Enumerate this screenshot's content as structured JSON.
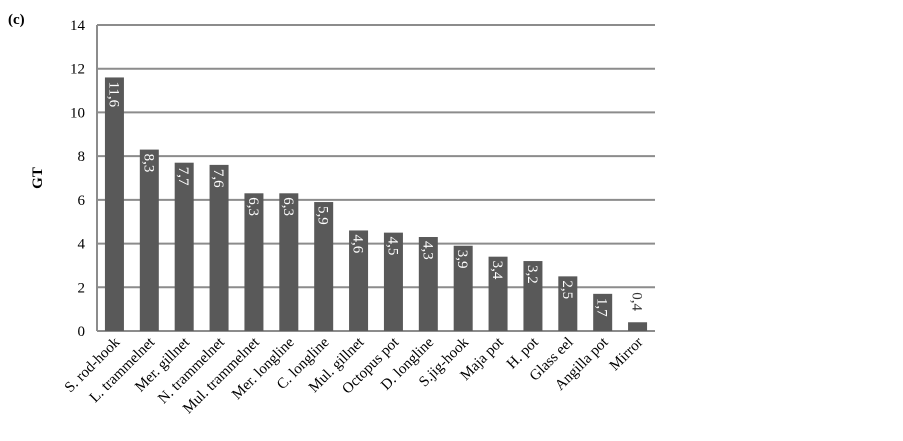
{
  "chart_data": {
    "type": "bar",
    "panel_label": "(c)",
    "y_label": "GT",
    "categories": [
      "S. rod-hook",
      "L. trammelnet",
      "Mer. gillnet",
      "N. trammelnet",
      "Mul. trammelnet",
      "Mer. longline",
      "C. longline",
      "Mul. gillnet",
      "Octopus pot",
      "D. longline",
      "S.jig-hook",
      "Maja pot",
      "H. pot",
      "Glass eel",
      "Angilla pot",
      "Mirror"
    ],
    "values": [
      11.6,
      8.3,
      7.7,
      7.6,
      6.3,
      6.3,
      5.9,
      4.6,
      4.5,
      4.3,
      3.9,
      3.4,
      3.2,
      2.5,
      1.7,
      0.4
    ],
    "value_labels": [
      "11,6",
      "8,3",
      "7,7",
      "7,6",
      "6,3",
      "6,3",
      "5,9",
      "4,6",
      "4,5",
      "4,3",
      "3,9",
      "3,4",
      "3,2",
      "2,5",
      "1,7",
      "0,4"
    ],
    "color": "#595959",
    "ylim": [
      0,
      14
    ],
    "yticks": [
      0,
      2,
      4,
      6,
      8,
      10,
      12,
      14
    ],
    "grid": true
  }
}
